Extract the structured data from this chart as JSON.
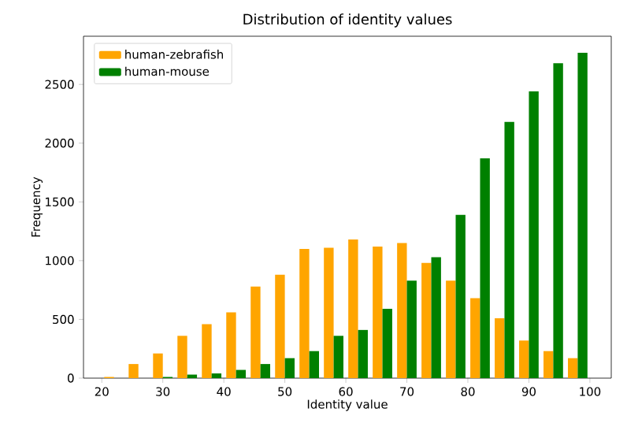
{
  "chart_data": {
    "type": "histogram",
    "title": "Distribution of identity values",
    "xlabel": "Identity value",
    "ylabel": "Frequency",
    "bins": [
      20,
      24,
      28,
      32,
      36,
      40,
      44,
      48,
      52,
      56,
      60,
      64,
      68,
      72,
      76,
      80,
      84,
      88,
      92,
      96,
      100
    ],
    "series": [
      {
        "name": "human-zebrafish",
        "color": "#ffa500",
        "values": [
          10,
          120,
          210,
          360,
          460,
          560,
          780,
          880,
          1100,
          1110,
          1180,
          1120,
          1150,
          980,
          830,
          680,
          510,
          320,
          230,
          170
        ]
      },
      {
        "name": "human-mouse",
        "color": "#008000",
        "values": [
          0,
          0,
          10,
          30,
          40,
          70,
          120,
          170,
          230,
          360,
          410,
          590,
          830,
          1030,
          1390,
          1870,
          2180,
          2440,
          2680,
          2770
        ]
      }
    ],
    "xlim": [
      17,
      103.5
    ],
    "ylim": [
      0,
      2910
    ],
    "xticks": [
      20,
      30,
      40,
      50,
      60,
      70,
      80,
      90,
      100
    ],
    "yticks": [
      0,
      500,
      1000,
      1500,
      2000,
      2500
    ],
    "legend": "top left",
    "grid": false
  }
}
